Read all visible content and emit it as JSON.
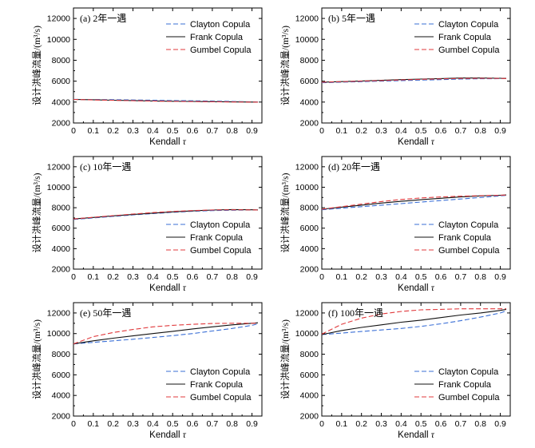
{
  "colors": {
    "clayton": "#3a6fd6",
    "frank": "#111111",
    "gumbel": "#e0383b",
    "axis": "#000000"
  },
  "legend": [
    "Clayton Copula",
    "Frank Copula",
    "Gumbel Copula"
  ],
  "xlabel_main": "Kendall ",
  "xlabel_symbol": "τ",
  "ylabel": "设计洪峰流量/(m³/s)",
  "x_ticks": [
    "0",
    "0.1",
    "0.2",
    "0.3",
    "0.4",
    "0.5",
    "0.6",
    "0.7",
    "0.8",
    "0.9"
  ],
  "y_ticks": [
    "2000",
    "4000",
    "6000",
    "8000",
    "10000",
    "12000"
  ],
  "chart_data": [
    {
      "type": "line",
      "title": "(a) 2年一遇",
      "legend_position": "top-right",
      "xlim": [
        0,
        0.95
      ],
      "ylim": [
        2000,
        13000
      ],
      "x": [
        0.0,
        0.1,
        0.2,
        0.3,
        0.4,
        0.5,
        0.6,
        0.7,
        0.8,
        0.9,
        0.93
      ],
      "series": [
        {
          "name": "Clayton Copula",
          "values": [
            4260,
            4240,
            4230,
            4200,
            4180,
            4150,
            4120,
            4090,
            4060,
            4020,
            4000
          ]
        },
        {
          "name": "Frank Copula",
          "values": [
            4250,
            4220,
            4180,
            4150,
            4110,
            4080,
            4060,
            4040,
            4020,
            4000,
            3990
          ]
        },
        {
          "name": "Gumbel Copula",
          "values": [
            4250,
            4210,
            4170,
            4130,
            4100,
            4070,
            4050,
            4030,
            4010,
            4000,
            3990
          ]
        }
      ]
    },
    {
      "type": "line",
      "title": "(b) 5年一遇",
      "legend_position": "top-right",
      "xlim": [
        0,
        0.95
      ],
      "ylim": [
        2000,
        13000
      ],
      "x": [
        0.0,
        0.1,
        0.2,
        0.3,
        0.4,
        0.5,
        0.6,
        0.7,
        0.8,
        0.9,
        0.93
      ],
      "series": [
        {
          "name": "Clayton Copula",
          "values": [
            5850,
            5900,
            5950,
            6000,
            6050,
            6100,
            6150,
            6200,
            6230,
            6240,
            6250
          ]
        },
        {
          "name": "Frank Copula",
          "values": [
            5900,
            5960,
            6020,
            6080,
            6150,
            6200,
            6250,
            6300,
            6300,
            6280,
            6260
          ]
        },
        {
          "name": "Gumbel Copula",
          "values": [
            5900,
            5950,
            6000,
            6060,
            6120,
            6170,
            6220,
            6260,
            6270,
            6260,
            6250
          ]
        }
      ]
    },
    {
      "type": "line",
      "title": "(c) 10年一遇",
      "legend_position": "bottom-right",
      "xlim": [
        0,
        0.95
      ],
      "ylim": [
        2000,
        13000
      ],
      "x": [
        0.0,
        0.1,
        0.2,
        0.3,
        0.4,
        0.5,
        0.6,
        0.7,
        0.8,
        0.9,
        0.93
      ],
      "series": [
        {
          "name": "Clayton Copula",
          "values": [
            6850,
            7000,
            7150,
            7300,
            7430,
            7550,
            7650,
            7720,
            7760,
            7780,
            7780
          ]
        },
        {
          "name": "Frank Copula",
          "values": [
            6900,
            7050,
            7200,
            7340,
            7470,
            7590,
            7690,
            7770,
            7820,
            7800,
            7780
          ]
        },
        {
          "name": "Gumbel Copula",
          "values": [
            6900,
            7060,
            7220,
            7380,
            7520,
            7630,
            7720,
            7780,
            7800,
            7790,
            7780
          ]
        }
      ]
    },
    {
      "type": "line",
      "title": "(d) 20年一遇",
      "legend_position": "bottom-right",
      "xlim": [
        0,
        0.95
      ],
      "ylim": [
        2000,
        13000
      ],
      "x": [
        0.0,
        0.1,
        0.2,
        0.3,
        0.4,
        0.5,
        0.6,
        0.7,
        0.8,
        0.9,
        0.93
      ],
      "series": [
        {
          "name": "Clayton Copula",
          "values": [
            7800,
            7950,
            8100,
            8250,
            8400,
            8550,
            8700,
            8850,
            9000,
            9150,
            9200
          ]
        },
        {
          "name": "Frank Copula",
          "values": [
            7850,
            8050,
            8250,
            8450,
            8620,
            8780,
            8920,
            9050,
            9150,
            9220,
            9250
          ]
        },
        {
          "name": "Gumbel Copula",
          "values": [
            7850,
            8100,
            8350,
            8600,
            8800,
            8950,
            9050,
            9120,
            9180,
            9220,
            9230
          ]
        }
      ]
    },
    {
      "type": "line",
      "title": "(e) 50年一遇",
      "legend_position": "bottom-right",
      "xlim": [
        0,
        0.95
      ],
      "ylim": [
        2000,
        13000
      ],
      "x": [
        0.0,
        0.1,
        0.2,
        0.3,
        0.4,
        0.5,
        0.6,
        0.7,
        0.8,
        0.9,
        0.93
      ],
      "series": [
        {
          "name": "Clayton Copula",
          "values": [
            9000,
            9150,
            9300,
            9450,
            9620,
            9800,
            10000,
            10250,
            10500,
            10800,
            10950
          ]
        },
        {
          "name": "Frank Copula",
          "values": [
            9000,
            9300,
            9550,
            9780,
            10000,
            10220,
            10450,
            10650,
            10850,
            11000,
            11050
          ]
        },
        {
          "name": "Gumbel Copula",
          "values": [
            9000,
            9700,
            10100,
            10400,
            10650,
            10800,
            10900,
            10980,
            11000,
            11000,
            11000
          ]
        }
      ]
    },
    {
      "type": "line",
      "title": "(f) 100年一遇",
      "legend_position": "bottom-right",
      "xlim": [
        0,
        0.95
      ],
      "ylim": [
        2000,
        13000
      ],
      "x": [
        0.0,
        0.1,
        0.2,
        0.3,
        0.4,
        0.5,
        0.6,
        0.7,
        0.8,
        0.9,
        0.93
      ],
      "series": [
        {
          "name": "Clayton Copula",
          "values": [
            9900,
            10050,
            10200,
            10350,
            10500,
            10700,
            10950,
            11250,
            11600,
            12000,
            12200
          ]
        },
        {
          "name": "Frank Copula",
          "values": [
            9900,
            10300,
            10600,
            10850,
            11100,
            11300,
            11550,
            11800,
            12000,
            12250,
            12350
          ]
        },
        {
          "name": "Gumbel Copula",
          "values": [
            9950,
            10900,
            11500,
            11900,
            12150,
            12300,
            12350,
            12400,
            12400,
            12400,
            12400
          ]
        }
      ]
    }
  ]
}
